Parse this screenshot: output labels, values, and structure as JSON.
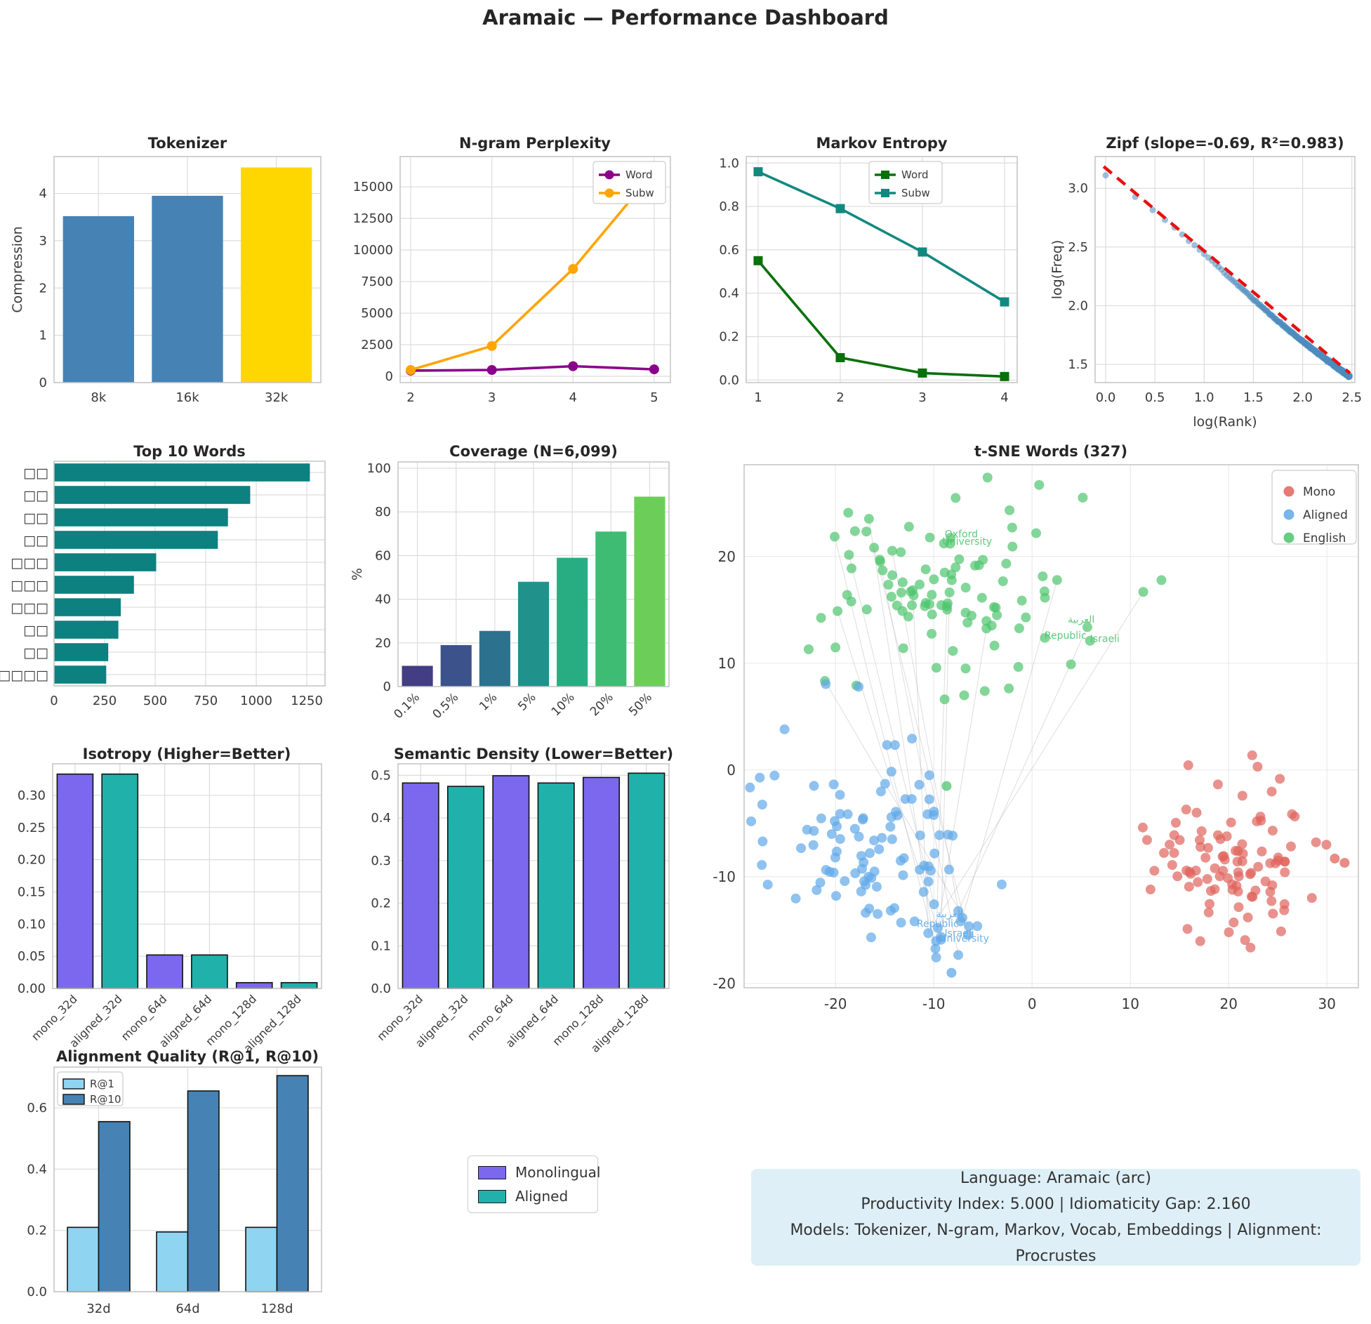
{
  "title": "Aramaic — Performance Dashboard",
  "model_legend": {
    "monolingual": "Monolingual",
    "aligned": "Aligned"
  },
  "info_box": {
    "line1": "Language: Aramaic (arc)",
    "line2": "Productivity Index: 5.000  |  Idiomaticity Gap: 2.160",
    "line3": "Models: Tokenizer, N-gram, Markov, Vocab, Embeddings  |  Alignment: Procrustes"
  },
  "colors": {
    "monolingual": "#7B68EE",
    "aligned": "#20B2AA",
    "info_bg": "#DEEFF7",
    "grid": "#DCDCDC",
    "frame": "#C3C3C3",
    "tick_text": "#3A3A3A",
    "title_text": "#262626"
  },
  "chart_data": [
    {
      "id": "tokenizer",
      "type": "bar",
      "title": "Tokenizer",
      "ylabel": "Compression",
      "categories": [
        "8k",
        "16k",
        "32k"
      ],
      "values": [
        3.52,
        3.95,
        4.55
      ],
      "bar_colors": [
        "#4682B4",
        "#4682B4",
        "#FFD700"
      ],
      "yticks": [
        0,
        1,
        2,
        3,
        4
      ],
      "ydecimals": 0,
      "ylim": [
        0,
        4.78
      ]
    },
    {
      "id": "ngram",
      "type": "line",
      "title": "N-gram Perplexity",
      "x": [
        2,
        3,
        4,
        5
      ],
      "xticks": [
        2,
        3,
        4,
        5
      ],
      "xlim": [
        1.87,
        5.2
      ],
      "yticks": [
        0,
        2500,
        5000,
        7500,
        10000,
        12500,
        15000
      ],
      "ydecimals": 0,
      "ylim": [
        -500,
        17400
      ],
      "series": [
        {
          "name": "Word",
          "color": "#8B008B",
          "marker": "circle",
          "values": [
            450,
            500,
            800,
            550
          ]
        },
        {
          "name": "Subw",
          "color": "#FFA500",
          "marker": "circle",
          "values": [
            500,
            2400,
            8500,
            16200
          ]
        }
      ],
      "legend_labels": [
        "Word",
        "Subw"
      ]
    },
    {
      "id": "markov",
      "type": "line",
      "title": "Markov Entropy",
      "x": [
        1,
        2,
        3,
        4
      ],
      "xticks": [
        1,
        2,
        3,
        4
      ],
      "xlim": [
        0.855,
        4.154
      ],
      "yticks": [
        0.0,
        0.2,
        0.4,
        0.6,
        0.8,
        1.0
      ],
      "ydecimals": 1,
      "ylim": [
        -0.012,
        1.03
      ],
      "series": [
        {
          "name": "Word",
          "color": "#0A700A",
          "marker": "square",
          "values": [
            0.55,
            0.103,
            0.032,
            0.016
          ]
        },
        {
          "name": "Subw",
          "color": "#11897F",
          "marker": "square",
          "values": [
            0.96,
            0.79,
            0.59,
            0.36
          ]
        }
      ],
      "legend_labels": [
        "Word",
        "Subw"
      ]
    },
    {
      "id": "zipf",
      "type": "zipf",
      "title": "Zipf (slope=-0.69, R²=0.983)",
      "xlabel": "log(Rank)",
      "ylabel": "log(Freq)",
      "xticks": [
        0,
        0.5,
        1,
        1.5,
        2,
        2.5
      ],
      "xdecimals": 1,
      "xlim": [
        -0.107,
        2.53
      ],
      "yticks": [
        1.5,
        2,
        2.5,
        3
      ],
      "ydecimals": 1,
      "ylim": [
        1.345,
        3.27
      ],
      "slope": -0.69,
      "intercept": 3.11,
      "n_ranks": 300,
      "fit_line": [
        [
          -0.02,
          3.185
        ],
        [
          2.48,
          1.425
        ]
      ],
      "point_color": "#4C8CBE",
      "fit_color": "#E81010"
    },
    {
      "id": "top_words",
      "type": "hbar",
      "title": "Top 10 Words",
      "labels": [
        "□□",
        "□□",
        "□□",
        "□□",
        "□□□",
        "□□□",
        "□□□",
        "□□",
        "□□",
        "□□□□"
      ],
      "values": [
        1265,
        970,
        860,
        810,
        505,
        395,
        330,
        318,
        268,
        258
      ],
      "bar_color": "#0D8080",
      "xticks": [
        0,
        250,
        500,
        750,
        1000,
        1250
      ],
      "xlim": [
        0,
        1340
      ]
    },
    {
      "id": "coverage",
      "type": "bar",
      "title": "Coverage (N=6,099)",
      "ylabel": "%",
      "categories": [
        "0.1%",
        "0.5%",
        "1%",
        "5%",
        "10%",
        "20%",
        "50%"
      ],
      "values": [
        9.5,
        19,
        25.5,
        48,
        59,
        71,
        87
      ],
      "bar_colors": [
        "#433D84",
        "#3B528B",
        "#2C728E",
        "#21918C",
        "#27AD81",
        "#3EBC74",
        "#6CCE59"
      ],
      "yticks": [
        0,
        20,
        40,
        60,
        80,
        100
      ],
      "ydecimals": 0,
      "ylim": [
        0,
        102.9
      ],
      "rotate_xticks": true
    },
    {
      "id": "tsne",
      "type": "tsne",
      "title": "t-SNE Words (327)",
      "xticks": [
        -20,
        -10,
        0,
        10,
        20,
        30
      ],
      "yticks": [
        -20,
        -10,
        0,
        10,
        20
      ],
      "xlim": [
        -29.3,
        33.2
      ],
      "ylim": [
        -20.4,
        28.6
      ],
      "legend": [
        {
          "label": "Mono",
          "color": "#E0645C"
        },
        {
          "label": "Aligned",
          "color": "#5FA8E8"
        },
        {
          "label": "English",
          "color": "#4EC46E"
        }
      ],
      "clusters": [
        {
          "name": "english",
          "color": "#4EC46E",
          "n": 105,
          "cx": -8,
          "cy": 17,
          "sx": 7.0,
          "sy": 4.6,
          "ymin": 5.5
        },
        {
          "name": "aligned",
          "color": "#5FA8E8",
          "n": 98,
          "cx": -16.5,
          "cy": -7,
          "sx": 5.2,
          "sy": 4.6
        },
        {
          "name": "aligned-sub",
          "color": "#5FA8E8",
          "n": 14,
          "cx": -8.6,
          "cy": -15.3,
          "sx": 1.1,
          "sy": 1.5
        },
        {
          "name": "mono",
          "color": "#E0645C",
          "n": 100,
          "cx": 20.5,
          "cy": -8.5,
          "sx": 4.2,
          "sy": 3.6
        }
      ],
      "extra_points": [
        {
          "x": -8.7,
          "y": -1.5,
          "color": "#4EC46E"
        },
        {
          "x": -8.2,
          "y": -19.0,
          "color": "#5FA8E8"
        },
        {
          "x": 30.8,
          "y": -8.3,
          "color": "#E0645C"
        },
        {
          "x": 31.8,
          "y": -8.7,
          "color": "#E0645C"
        }
      ],
      "connector_count": 15,
      "annotations": [
        {
          "text": "Oxford",
          "x": -7.2,
          "y": 21.8,
          "color": "#4EC46E"
        },
        {
          "text": "University",
          "x": -6.6,
          "y": 21.1,
          "color": "#4EC46E"
        },
        {
          "text": "العربية",
          "x": 5.0,
          "y": 13.8,
          "color": "#4EC46E"
        },
        {
          "text": "Republic",
          "x": 3.4,
          "y": 12.3,
          "color": "#4EC46E"
        },
        {
          "text": "Israeli",
          "x": 7.4,
          "y": 12.0,
          "color": "#4EC46E"
        },
        {
          "text": "العربية",
          "x": -8.4,
          "y": -13.8,
          "color": "#5FA8E8"
        },
        {
          "text": "Republic",
          "x": -9.6,
          "y": -14.7,
          "color": "#5FA8E8"
        },
        {
          "text": "Israeli",
          "x": -7.4,
          "y": -15.6,
          "color": "#5FA8E8"
        },
        {
          "text": "University",
          "x": -6.9,
          "y": -16.1,
          "color": "#5FA8E8"
        }
      ]
    },
    {
      "id": "isotropy",
      "type": "bar",
      "title": "Isotropy (Higher=Better)",
      "categories": [
        "mono_32d",
        "aligned_32d",
        "mono_64d",
        "aligned_64d",
        "mono_128d",
        "aligned_128d"
      ],
      "values": [
        0.333,
        0.333,
        0.052,
        0.052,
        0.009,
        0.009
      ],
      "bar_colors": [
        "#7B68EE",
        "#20B2AA",
        "#7B68EE",
        "#20B2AA",
        "#7B68EE",
        "#20B2AA"
      ],
      "edge": "#111111",
      "yticks": [
        0,
        0.05,
        0.1,
        0.15,
        0.2,
        0.25,
        0.3
      ],
      "ydecimals": 2,
      "ylim": [
        0,
        0.349
      ],
      "rotate_xticks": true
    },
    {
      "id": "semantic",
      "type": "bar",
      "title": "Semantic Density (Lower=Better)",
      "categories": [
        "mono_32d",
        "aligned_32d",
        "mono_64d",
        "aligned_64d",
        "mono_128d",
        "aligned_128d"
      ],
      "values": [
        0.482,
        0.474,
        0.499,
        0.482,
        0.495,
        0.505
      ],
      "bar_colors": [
        "#7B68EE",
        "#20B2AA",
        "#7B68EE",
        "#20B2AA",
        "#7B68EE",
        "#20B2AA"
      ],
      "edge": "#111111",
      "yticks": [
        0,
        0.1,
        0.2,
        0.3,
        0.4,
        0.5
      ],
      "ydecimals": 1,
      "ylim": [
        0,
        0.527
      ],
      "rotate_xticks": true
    },
    {
      "id": "alignment",
      "type": "grouped_bar",
      "title": "Alignment Quality (R@1, R@10)",
      "categories": [
        "32d",
        "64d",
        "128d"
      ],
      "series": [
        {
          "name": "R@1",
          "color": "#8FD4F0",
          "values": [
            0.21,
            0.195,
            0.21
          ]
        },
        {
          "name": "R@10",
          "color": "#4682B4",
          "values": [
            0.555,
            0.655,
            0.705
          ]
        }
      ],
      "edge": "#111111",
      "yticks": [
        0,
        0.2,
        0.4,
        0.6
      ],
      "ydecimals": 1,
      "ylim": [
        0,
        0.733
      ]
    }
  ]
}
